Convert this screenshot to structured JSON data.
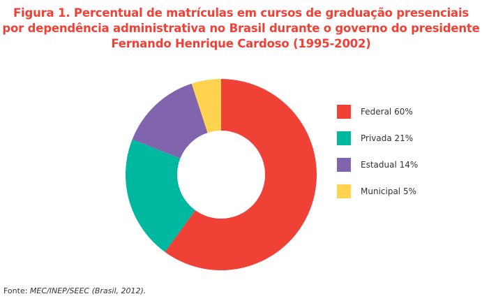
{
  "chart_data": {
    "type": "pie",
    "donut": true,
    "title_lines": [
      "Figura 1. Percentual de matrículas em cursos de graduação presenciais",
      "por dependência administrativa no Brasil durante o governo do presidente",
      "Fernando Henrique Cardoso (1995-2002)"
    ],
    "slices": [
      {
        "label": "Federal 60%",
        "value": 60,
        "color": "#ef4136"
      },
      {
        "label": "Privada 21%",
        "value": 21,
        "color": "#00b8a0"
      },
      {
        "label": "Estadual 14%",
        "value": 14,
        "color": "#8064ae"
      },
      {
        "label": "Municipal 5%",
        "value": 5,
        "color": "#ffd24f"
      }
    ],
    "legend_position": "right"
  },
  "source": {
    "prefix": "Fonte: ",
    "reference": "MEC/INEP/SEEC (Brasil, 2012)."
  }
}
